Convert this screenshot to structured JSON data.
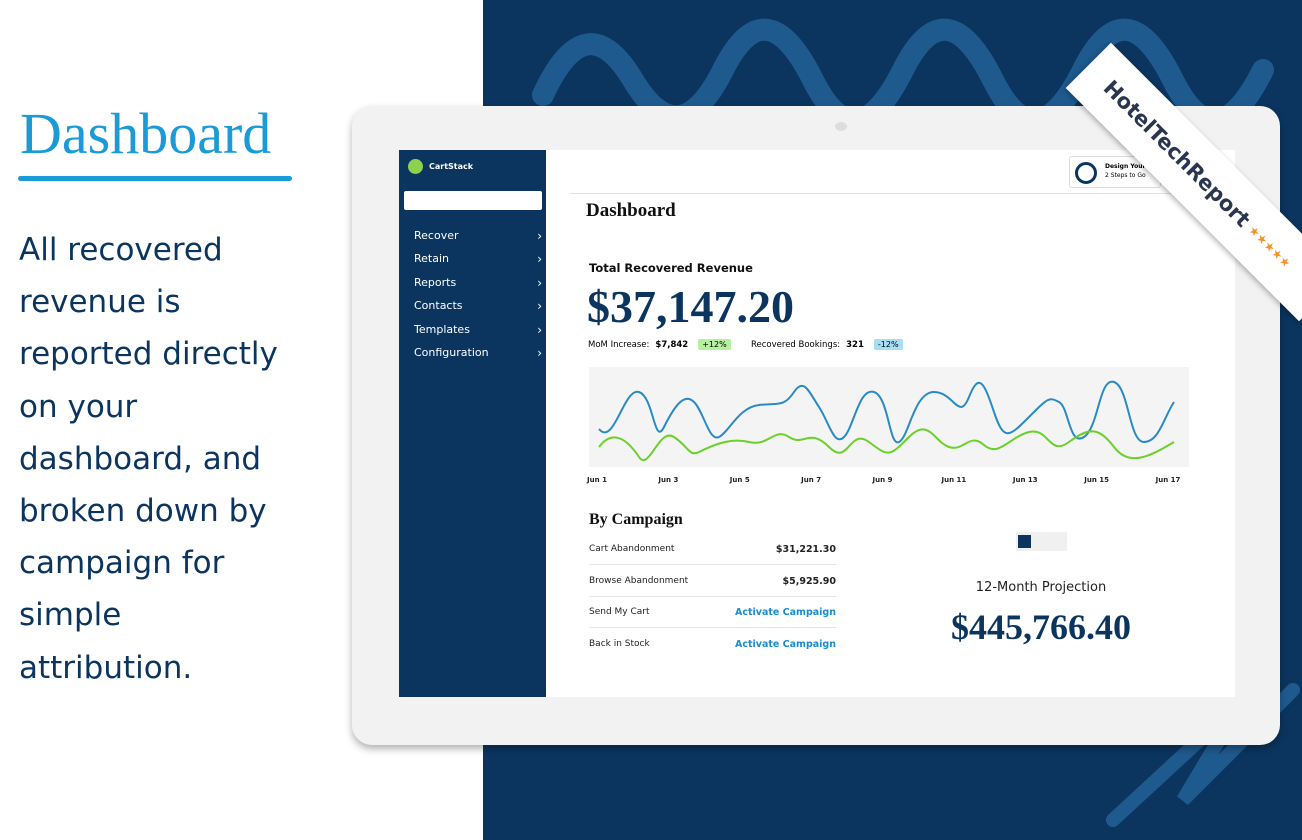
{
  "left": {
    "title": "Dashboard",
    "body": "All recovered revenue is reported directly on your dashboard, and broken down by campaign for simple attribution."
  },
  "app": {
    "brand": "CartStack",
    "nav": [
      "Recover",
      "Retain",
      "Reports",
      "Contacts",
      "Templates",
      "Configuration"
    ],
    "widget": {
      "title": "Design Your L",
      "subtitle": "2 Steps to Go"
    },
    "page_title": "Dashboard",
    "revenue": {
      "label": "Total Recovered Revenue",
      "amount": "$37,147.20"
    },
    "mom": {
      "label": "MoM Increase:",
      "value": "$7,842",
      "change": "+12%"
    },
    "bookings": {
      "label": "Recovered Bookings:",
      "value": "321",
      "change": "-12%"
    },
    "chart_x_labels": [
      "Jun 1",
      "Jun 3",
      "Jun 5",
      "Jun 7",
      "Jun 9",
      "Jun 11",
      "Jun 13",
      "Jun 15",
      "Jun 17"
    ],
    "campaigns": {
      "title": "By Campaign",
      "rows": [
        [
          "Cart Abandonment",
          "$31,221.30"
        ],
        [
          "Browse Abandonment",
          "$5,925.90"
        ],
        [
          "Send My Cart",
          "Activate Campaign"
        ],
        [
          "Back in Stock",
          "Activate Campaign"
        ]
      ]
    },
    "projection": {
      "label": "12-Month Projection",
      "amount": "$445,766.40"
    }
  },
  "badge": "HotelTechReport"
}
